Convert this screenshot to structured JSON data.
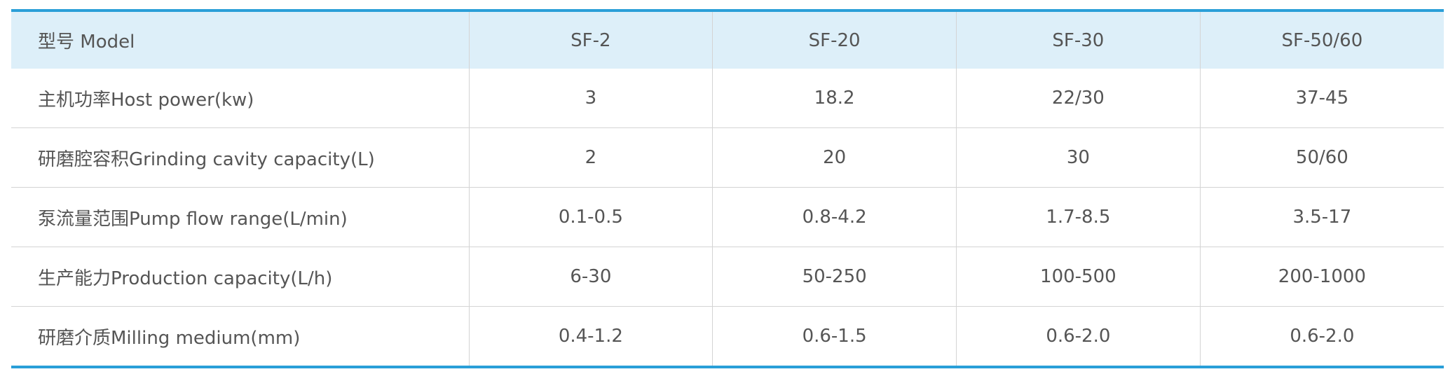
{
  "table": {
    "header": [
      "型号 Model",
      "SF-2",
      "SF-20",
      "SF-30",
      "SF-50/60"
    ],
    "rows": [
      [
        "主机功率Host power(kw)",
        "3",
        "18.2",
        "22/30",
        "37-45"
      ],
      [
        "研磨腔容积Grinding cavity capacity(L)",
        "2",
        "20",
        "30",
        "50/60"
      ],
      [
        "泵流量范围Pump flow range(L/min)",
        "0.1-0.5",
        "0.8-4.2",
        "1.7-8.5",
        "3.5-17"
      ],
      [
        "生产能力Production capacity(L/h)",
        "6-30",
        "50-250",
        "100-500",
        "200-1000"
      ],
      [
        "研磨介质Milling medium(mm)",
        "0.4-1.2",
        "0.6-1.5",
        "0.6-2.0",
        "0.6-2.0"
      ]
    ]
  }
}
